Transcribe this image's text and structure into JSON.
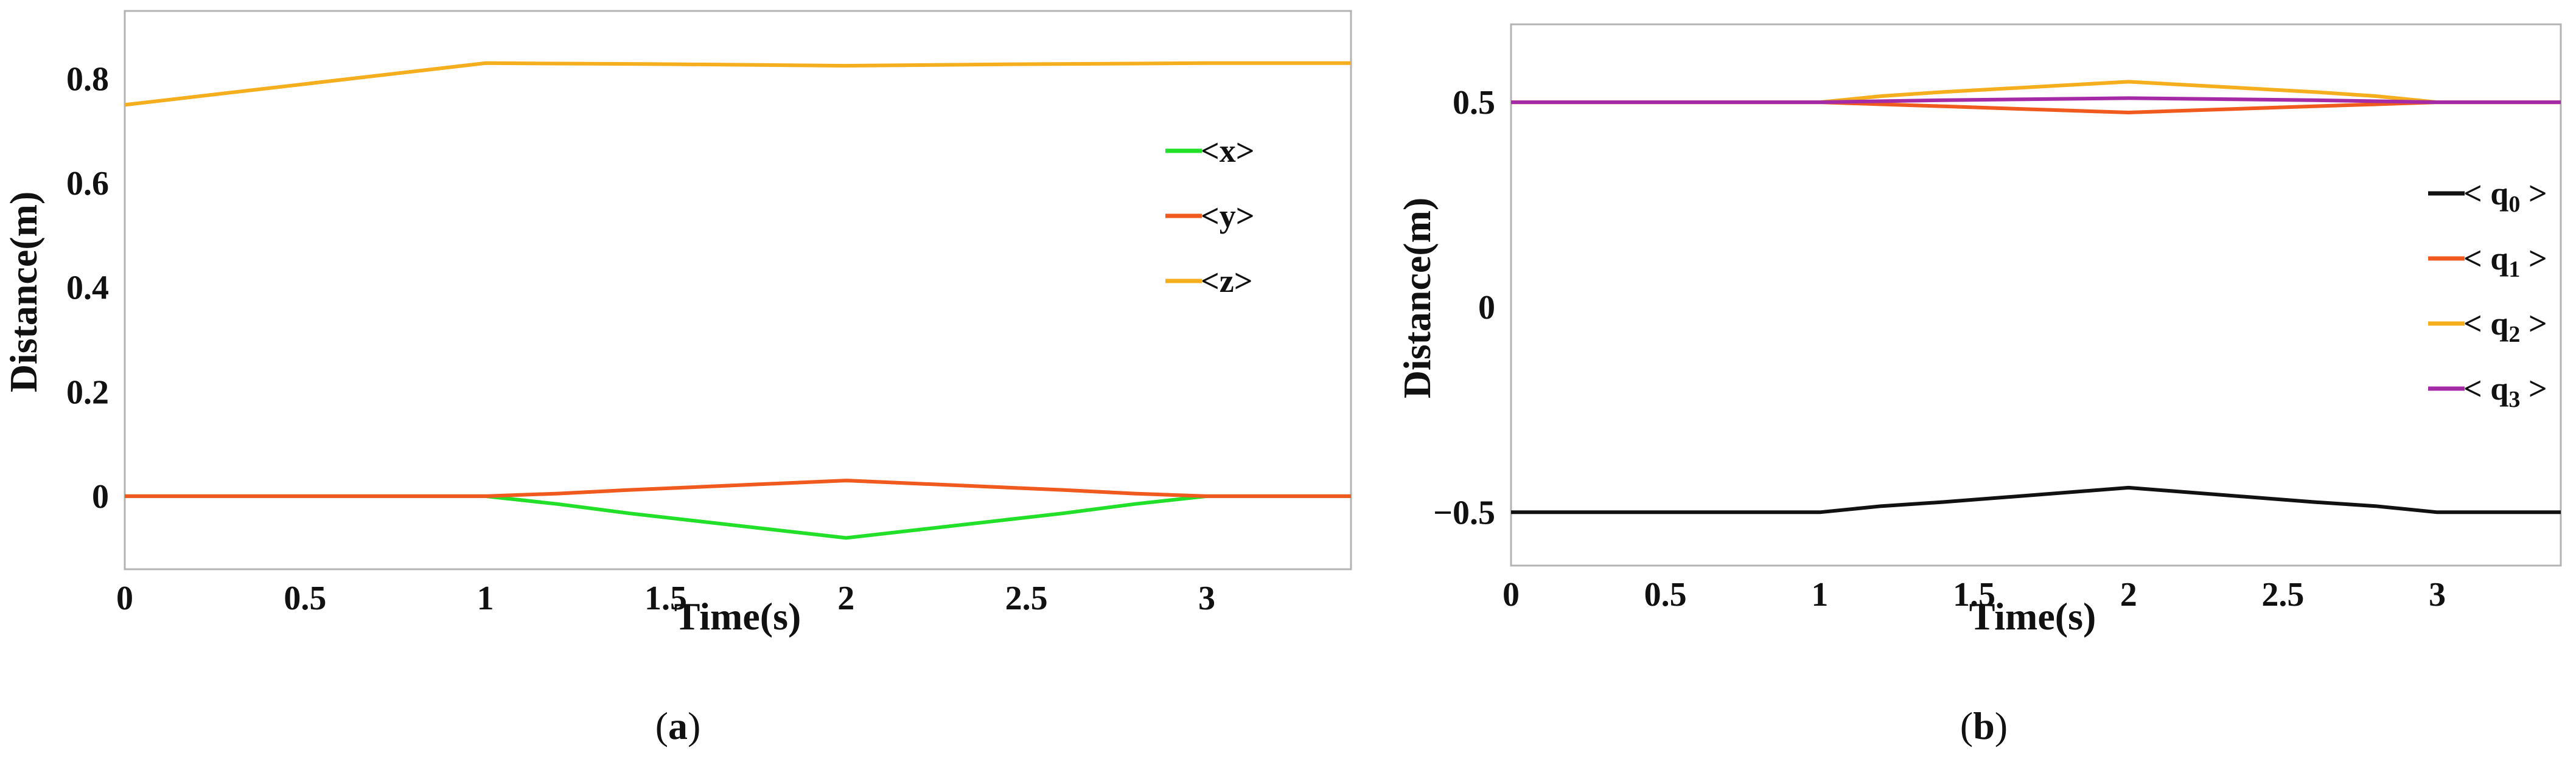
{
  "chart_data": [
    {
      "type": "line",
      "panel": "a",
      "caption": {
        "open": "(",
        "letter": "a",
        "close": ")"
      },
      "xlabel": "Time(s)",
      "ylabel": "Distance(m)",
      "xlim": [
        0,
        3.4
      ],
      "ylim": [
        -0.14,
        0.93
      ],
      "xticks": [
        0,
        0.5,
        1,
        1.5,
        2,
        2.5,
        3
      ],
      "xtick_labels": [
        "0",
        "0.5",
        "1",
        "1.5",
        "2",
        "2.5",
        "3"
      ],
      "yticks": [
        0,
        0.2,
        0.4,
        0.6,
        0.8
      ],
      "ytick_labels": [
        "0",
        "0.2",
        "0.4",
        "0.6",
        "0.8"
      ],
      "grid": false,
      "legend_position": "right",
      "series": [
        {
          "name": "<x>",
          "color": "#22e02a",
          "x": [
            0,
            1,
            1.2,
            1.4,
            2,
            2.6,
            2.8,
            3,
            3.4
          ],
          "y": [
            0,
            0,
            -0.015,
            -0.033,
            -0.08,
            -0.033,
            -0.015,
            0,
            0
          ]
        },
        {
          "name": "<y>",
          "color": "#f05a1e",
          "x": [
            0,
            1,
            1.2,
            1.4,
            2,
            2.6,
            2.8,
            3,
            3.4
          ],
          "y": [
            0,
            0,
            0.005,
            0.012,
            0.03,
            0.012,
            0.005,
            0,
            0
          ]
        },
        {
          "name": "<z>",
          "color": "#f5ae1e",
          "x": [
            0,
            1,
            1.5,
            2,
            2.5,
            3,
            3.4
          ],
          "y": [
            0.75,
            0.83,
            0.828,
            0.825,
            0.828,
            0.83,
            0.83
          ]
        }
      ]
    },
    {
      "type": "line",
      "panel": "b",
      "caption": {
        "open": "(",
        "letter": "b",
        "close": ")"
      },
      "xlabel": "Time(s)",
      "ylabel": "Distance(m)",
      "xlim": [
        0,
        3.4
      ],
      "ylim": [
        -0.63,
        0.69
      ],
      "xticks": [
        0,
        0.5,
        1,
        1.5,
        2,
        2.5,
        3
      ],
      "xtick_labels": [
        "0",
        "0.5",
        "1",
        "1.5",
        "2",
        "2.5",
        "3"
      ],
      "yticks": [
        -0.5,
        0,
        0.5
      ],
      "ytick_labels": [
        "−0.5",
        "0",
        "0.5"
      ],
      "grid": false,
      "legend_position": "right",
      "series": [
        {
          "name_prefix": "< q",
          "name_sub": "0",
          "name_suffix": " >",
          "color": "#111111",
          "x": [
            0,
            1,
            1.2,
            1.4,
            2,
            2.6,
            2.8,
            3,
            3.4
          ],
          "y": [
            -0.5,
            -0.5,
            -0.485,
            -0.475,
            -0.44,
            -0.475,
            -0.485,
            -0.5,
            -0.5
          ]
        },
        {
          "name_prefix": "< q",
          "name_sub": "1",
          "name_suffix": " >",
          "color": "#f05a1e",
          "x": [
            0,
            1,
            1.2,
            1.4,
            2,
            2.6,
            2.8,
            3,
            3.4
          ],
          "y": [
            0.5,
            0.5,
            0.495,
            0.49,
            0.475,
            0.49,
            0.495,
            0.5,
            0.5
          ]
        },
        {
          "name_prefix": "< q",
          "name_sub": "2",
          "name_suffix": " >",
          "color": "#f5ae1e",
          "x": [
            0,
            1,
            1.2,
            1.4,
            2,
            2.6,
            2.8,
            3,
            3.4
          ],
          "y": [
            0.5,
            0.5,
            0.515,
            0.525,
            0.55,
            0.525,
            0.515,
            0.5,
            0.5
          ]
        },
        {
          "name_prefix": "< q",
          "name_sub": "3",
          "name_suffix": " >",
          "color": "#a52aa5",
          "x": [
            0,
            1,
            1.4,
            2,
            2.6,
            3,
            3.4
          ],
          "y": [
            0.5,
            0.5,
            0.505,
            0.51,
            0.505,
            0.5,
            0.5
          ]
        }
      ]
    }
  ]
}
